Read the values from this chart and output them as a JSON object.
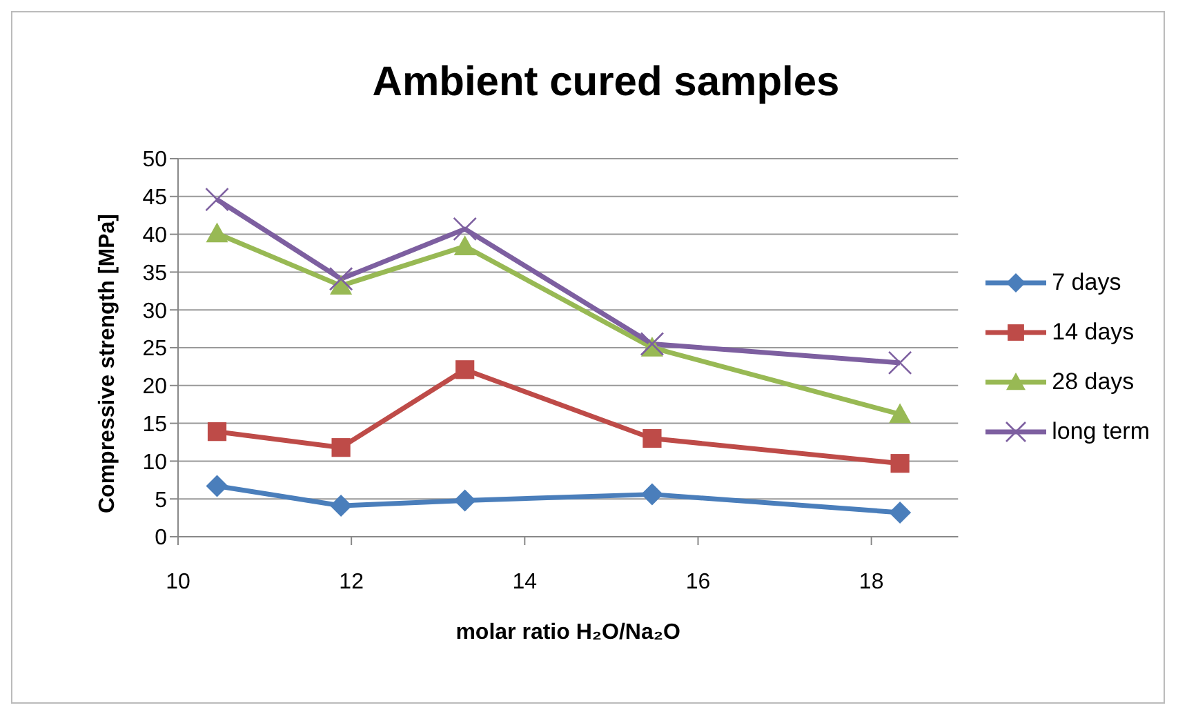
{
  "chart_data": {
    "type": "line",
    "title": "Ambient cured samples",
    "xlabel": "molar ratio H₂O/Na₂O",
    "ylabel": "Compressive strength [MPa]",
    "x": [
      10.45,
      11.88,
      13.31,
      15.47,
      18.33
    ],
    "series": [
      {
        "name": "7 days",
        "color": "#4a7ebb",
        "marker": "diamond",
        "values": [
          6.7,
          4.1,
          4.8,
          5.6,
          3.2
        ]
      },
      {
        "name": "14 days",
        "color": "#be4b48",
        "marker": "square",
        "values": [
          13.9,
          11.8,
          22.1,
          13.0,
          9.7
        ]
      },
      {
        "name": "28 days",
        "color": "#98b954",
        "marker": "triangle",
        "values": [
          40.1,
          33.2,
          38.4,
          25.0,
          16.2
        ]
      },
      {
        "name": "long term",
        "color": "#7d5fa0",
        "marker": "cross",
        "values": [
          44.6,
          34.1,
          40.7,
          25.5,
          23.0
        ]
      }
    ],
    "xlim": [
      10,
      19
    ],
    "xticks": [
      10,
      12,
      14,
      16,
      18
    ],
    "ylim": [
      0,
      50
    ],
    "yticks": [
      0,
      5,
      10,
      15,
      20,
      25,
      30,
      35,
      40,
      45,
      50
    ],
    "grid": "y",
    "legend": "right",
    "line_style": "solid"
  }
}
